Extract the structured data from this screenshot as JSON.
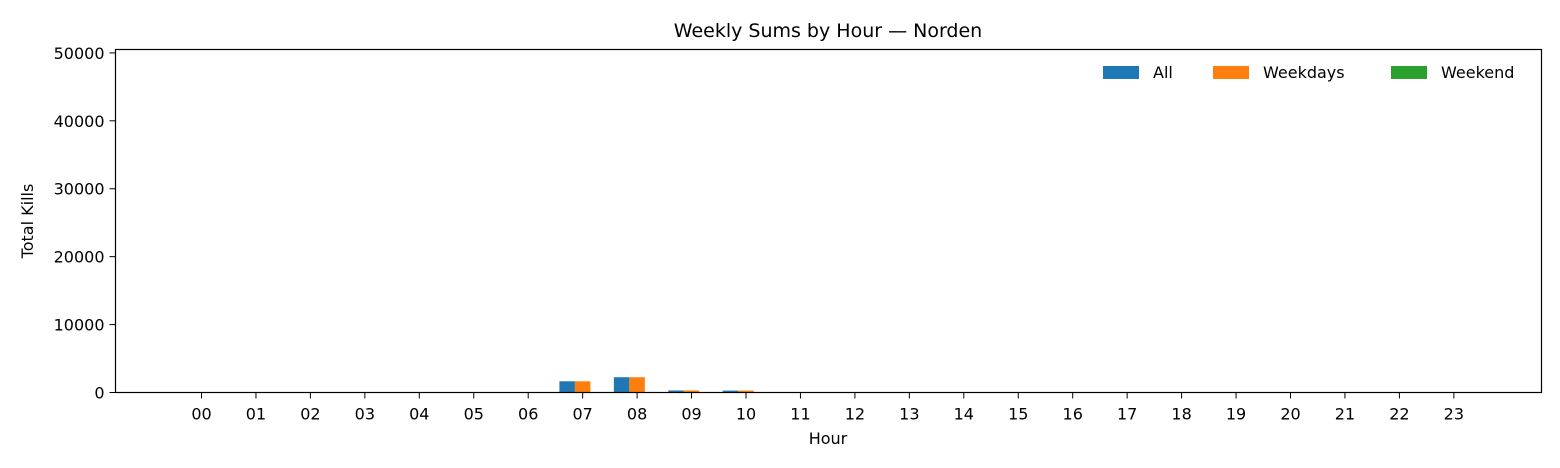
{
  "chart_data": {
    "type": "bar",
    "title": "Weekly Sums by Hour — Norden",
    "xlabel": "Hour",
    "ylabel": "Total Kills",
    "ylim": [
      0,
      50500
    ],
    "yticks": [
      0,
      10000,
      20000,
      30000,
      40000,
      50000
    ],
    "grid": false,
    "legend_position": "top-right",
    "categories": [
      "00",
      "01",
      "02",
      "03",
      "04",
      "05",
      "06",
      "07",
      "08",
      "09",
      "10",
      "11",
      "12",
      "13",
      "14",
      "15",
      "16",
      "17",
      "18",
      "19",
      "20",
      "21",
      "22",
      "23"
    ],
    "series": [
      {
        "name": "All",
        "color": "#1f77b4",
        "values": [
          0,
          0,
          0,
          0,
          0,
          0,
          0,
          1650,
          2250,
          300,
          280,
          0,
          0,
          0,
          0,
          0,
          0,
          0,
          0,
          0,
          0,
          0,
          0,
          0
        ]
      },
      {
        "name": "Weekdays",
        "color": "#ff7f0e",
        "values": [
          0,
          0,
          0,
          0,
          0,
          0,
          0,
          1650,
          2250,
          300,
          280,
          0,
          0,
          0,
          0,
          0,
          0,
          0,
          0,
          0,
          0,
          0,
          0,
          0
        ]
      },
      {
        "name": "Weekend",
        "color": "#2ca02c",
        "values": [
          0,
          0,
          0,
          0,
          0,
          0,
          0,
          0,
          0,
          0,
          0,
          0,
          0,
          0,
          0,
          0,
          0,
          0,
          0,
          0,
          0,
          0,
          0,
          0
        ]
      }
    ]
  }
}
